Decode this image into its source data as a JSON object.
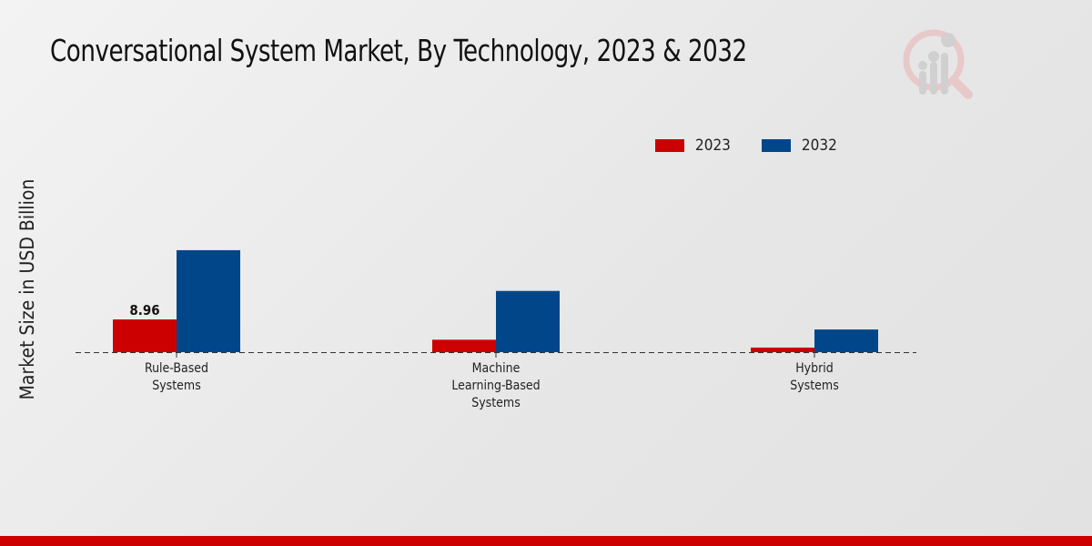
{
  "chart_data": {
    "type": "bar",
    "title": "Conversational System Market, By Technology, 2023 & 2032",
    "xlabel": "",
    "ylabel": "Market Size in USD Billion",
    "categories": [
      [
        "Rule-Based",
        "Systems"
      ],
      [
        "Machine",
        "Learning-Based",
        "Systems"
      ],
      [
        "Hybrid",
        "Systems"
      ]
    ],
    "series": [
      {
        "name": "2023",
        "color": "#cc0000",
        "values": [
          8.96,
          3.4,
          1.25
        ]
      },
      {
        "name": "2032",
        "color": "#004689",
        "values": [
          27.9,
          16.75,
          6.2
        ]
      }
    ],
    "data_labels": [
      {
        "series": 0,
        "index": 0,
        "text": "8.96"
      }
    ],
    "ylim": [
      0,
      59
    ],
    "grid": false,
    "legend_position": "top-right"
  },
  "footer_bar_color": "#cc0000"
}
